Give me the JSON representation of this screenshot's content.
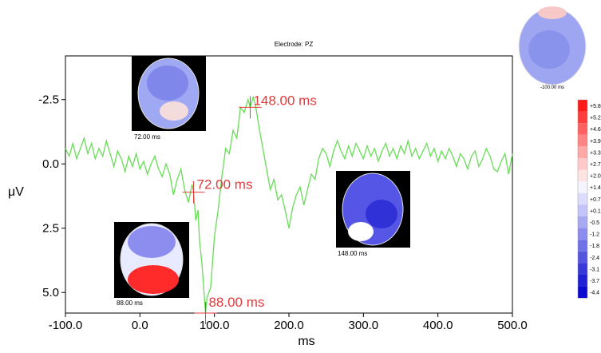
{
  "chart_data": {
    "type": "line",
    "title": "Electrode: PZ",
    "xlabel": "ms",
    "ylabel": "μV",
    "xlim": [
      -100,
      500
    ],
    "ylim": [
      -4.2,
      5.8
    ],
    "y_inverted": true,
    "grid": false,
    "x_ticks": [
      -100,
      0,
      100,
      200,
      300,
      400,
      500
    ],
    "x_tick_labels": [
      "-100.0",
      "0.0",
      "100.0",
      "200.0",
      "300.0",
      "400.0",
      "500.0"
    ],
    "y_ticks": [
      -2.5,
      0,
      2.5,
      5
    ],
    "y_tick_labels": [
      "-2.5",
      "0.0",
      "2.5",
      "5.0"
    ],
    "series": [
      {
        "color": "#66dd55",
        "x": [
          -100,
          -95,
          -90,
          -85,
          -80,
          -75,
          -70,
          -65,
          -60,
          -55,
          -50,
          -45,
          -40,
          -35,
          -30,
          -25,
          -20,
          -15,
          -10,
          -5,
          0,
          5,
          10,
          15,
          20,
          25,
          30,
          35,
          40,
          45,
          50,
          55,
          60,
          65,
          70,
          72,
          75,
          78,
          80,
          83,
          85,
          88,
          90,
          95,
          100,
          105,
          110,
          115,
          120,
          125,
          130,
          135,
          140,
          145,
          148,
          152,
          155,
          160,
          165,
          170,
          175,
          180,
          185,
          190,
          195,
          200,
          205,
          210,
          215,
          220,
          225,
          230,
          235,
          240,
          245,
          250,
          255,
          260,
          265,
          270,
          275,
          280,
          285,
          290,
          295,
          300,
          305,
          310,
          315,
          320,
          325,
          330,
          335,
          340,
          345,
          350,
          355,
          360,
          365,
          370,
          375,
          380,
          385,
          390,
          395,
          400,
          405,
          410,
          415,
          420,
          425,
          430,
          435,
          440,
          445,
          450,
          455,
          460,
          465,
          470,
          475,
          480,
          485,
          490,
          495,
          500
        ],
        "y": [
          -0.6,
          -0.3,
          -0.8,
          -0.2,
          -0.6,
          -1.0,
          -0.4,
          -0.8,
          -0.2,
          -0.6,
          -0.3,
          -0.9,
          -0.4,
          0.1,
          -0.5,
          -0.2,
          0.3,
          -0.3,
          0.1,
          -0.4,
          0.2,
          -0.1,
          0.4,
          0.0,
          -0.3,
          0.2,
          0.5,
          0.0,
          0.4,
          1.2,
          0.6,
          0.2,
          1.0,
          1.5,
          0.8,
          1.1,
          2.2,
          1.8,
          3.0,
          3.8,
          4.6,
          5.8,
          5.2,
          4.8,
          2.8,
          1.8,
          0.5,
          -0.6,
          -0.4,
          -1.3,
          -1.0,
          -2.2,
          -2.0,
          -2.5,
          -2.2,
          -2.6,
          -2.3,
          -1.4,
          -0.6,
          0.2,
          1.0,
          0.6,
          1.4,
          1.2,
          1.8,
          2.5,
          1.7,
          1.2,
          0.9,
          1.6,
          1.0,
          0.4,
          0.6,
          -0.2,
          -0.6,
          -0.4,
          0.1,
          -0.5,
          -0.9,
          -0.5,
          -0.2,
          -0.7,
          -0.3,
          -0.8,
          -0.5,
          -0.2,
          -0.7,
          -0.3,
          -0.6,
          -0.1,
          -0.5,
          -0.8,
          -0.3,
          -0.6,
          -0.2,
          -0.7,
          -0.4,
          -0.9,
          -0.3,
          -0.6,
          -0.2,
          -0.5,
          -0.8,
          -0.3,
          -0.6,
          -0.1,
          -0.5,
          -0.2,
          -0.6,
          -0.3,
          0.1,
          -0.4,
          -0.2,
          0.2,
          -0.3,
          -0.5,
          0.1,
          -0.2,
          -0.6,
          -0.3,
          0.2,
          0.3,
          -0.1,
          -0.4,
          0.4,
          -0.4
        ]
      }
    ],
    "annotations": [
      {
        "x": 72,
        "y": 1.1,
        "label": "72.00 ms"
      },
      {
        "x": 88,
        "y": 5.8,
        "label": "88.00 ms"
      },
      {
        "x": 148,
        "y": -2.2,
        "label": "148.00 ms"
      }
    ],
    "topomaps": [
      {
        "label": "72.00 ms",
        "pattern": "mild"
      },
      {
        "label": "88.00 ms",
        "pattern": "posterior-positive"
      },
      {
        "label": "148.00 ms",
        "pattern": "negative"
      },
      {
        "label": "-100.00 ms",
        "pattern": "baseline"
      }
    ],
    "colorbar": {
      "labels": [
        "+5.8",
        "+5.2",
        "+4.6",
        "+3.9",
        "+3.3",
        "+2.7",
        "+2.0",
        "+1.4",
        "+0.7",
        "+0.1",
        "-0.5",
        "-1.2",
        "-1.8",
        "-2.4",
        "-3.1",
        "-3.7",
        "-4.4"
      ],
      "colors": [
        "#ff1a1a",
        "#ff3d3d",
        "#ff6060",
        "#ff8585",
        "#ffa8a8",
        "#ffc9c9",
        "#ffe4e4",
        "#f4f4ff",
        "#dcdcff",
        "#c4c4fb",
        "#a8a8f3",
        "#8c8cee",
        "#7070e8",
        "#5555e0",
        "#3939da",
        "#2020d4",
        "#0a0ad0"
      ]
    }
  }
}
